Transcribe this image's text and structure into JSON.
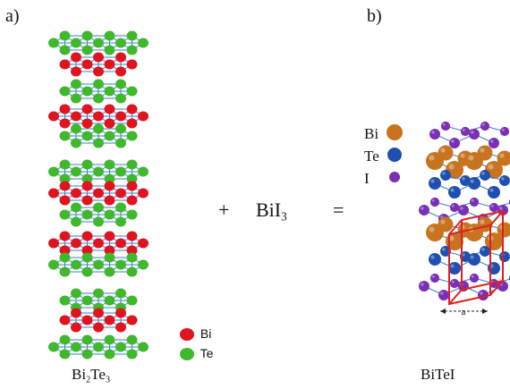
{
  "panel_labels": {
    "a": "a)",
    "b": "b)"
  },
  "captions": {
    "a_main": "Bi",
    "a_sub1": "2",
    "a_mid": "Te",
    "a_sub2": "3",
    "b": "BiTeI"
  },
  "equation": {
    "plus": "+",
    "compound_main": "BiI",
    "compound_sub": "3",
    "equals": "="
  },
  "legend_a": [
    {
      "label": "Bi",
      "color": "#e0141e"
    },
    {
      "label": "Te",
      "color": "#3fb82b"
    }
  ],
  "legend_b": [
    {
      "label": "Bi",
      "color": "#c8741e",
      "symbol": "Bi"
    },
    {
      "label": "Te",
      "color": "#1f4fb0",
      "symbol": "Te"
    },
    {
      "label": "I",
      "color": "#7a2fb5",
      "symbol": "I"
    }
  ],
  "axis_label_b": "a",
  "colors": {
    "bi": "#e0141e",
    "te": "#3fb82b",
    "bond": "#3a7fd0",
    "bitei_bi": "#c8741e",
    "bitei_te": "#1f4fb0",
    "bitei_i": "#7a2fb5",
    "cell": "#e02020"
  }
}
